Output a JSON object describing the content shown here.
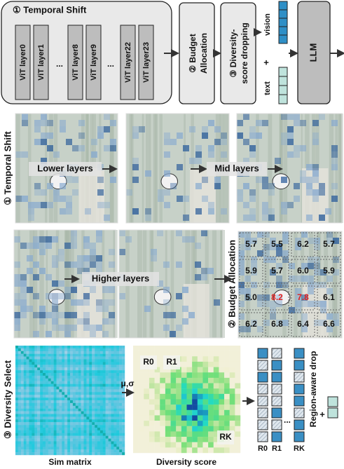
{
  "pipeline": {
    "temporal_shift": "① Temporal Shift",
    "layers": [
      "ViT layer0",
      "ViT layer1",
      "ViT layer8",
      "ViT layer9",
      "ViT layer22",
      "ViT layer23"
    ],
    "ellipsis": "...",
    "budget_allocation": [
      "② Budget",
      "Allocation"
    ],
    "diversity_dropping": [
      "③ Diversity-",
      "score dropping"
    ],
    "vision": "vision",
    "plus": "+",
    "text": "text",
    "llm": "LLM"
  },
  "temporal_shift": {
    "label": "① Temporal Shift",
    "stages": [
      "Lower layers",
      "Mid layers",
      "Higher layers"
    ]
  },
  "budget_allocation": {
    "label": "② Budget Allocation",
    "grid": [
      [
        "5.7",
        "5.5",
        "6.2",
        "5.7"
      ],
      [
        "5.9",
        "5.7",
        "6.0",
        "5.9"
      ],
      [
        "5.0",
        "8.2",
        "7.8",
        "6.1"
      ],
      [
        "6.2",
        "6.8",
        "6.4",
        "6.6"
      ]
    ]
  },
  "diversity_select": {
    "label": "③ Diversity Select",
    "sim_matrix": "Sim matrix",
    "stats": "μ,σ",
    "diversity_score": "Diversity score",
    "regions": [
      "R0",
      "R1",
      "RK"
    ],
    "ellipsis": "...",
    "region_aware_drop": "Region-aware drop",
    "plus": "+"
  }
}
